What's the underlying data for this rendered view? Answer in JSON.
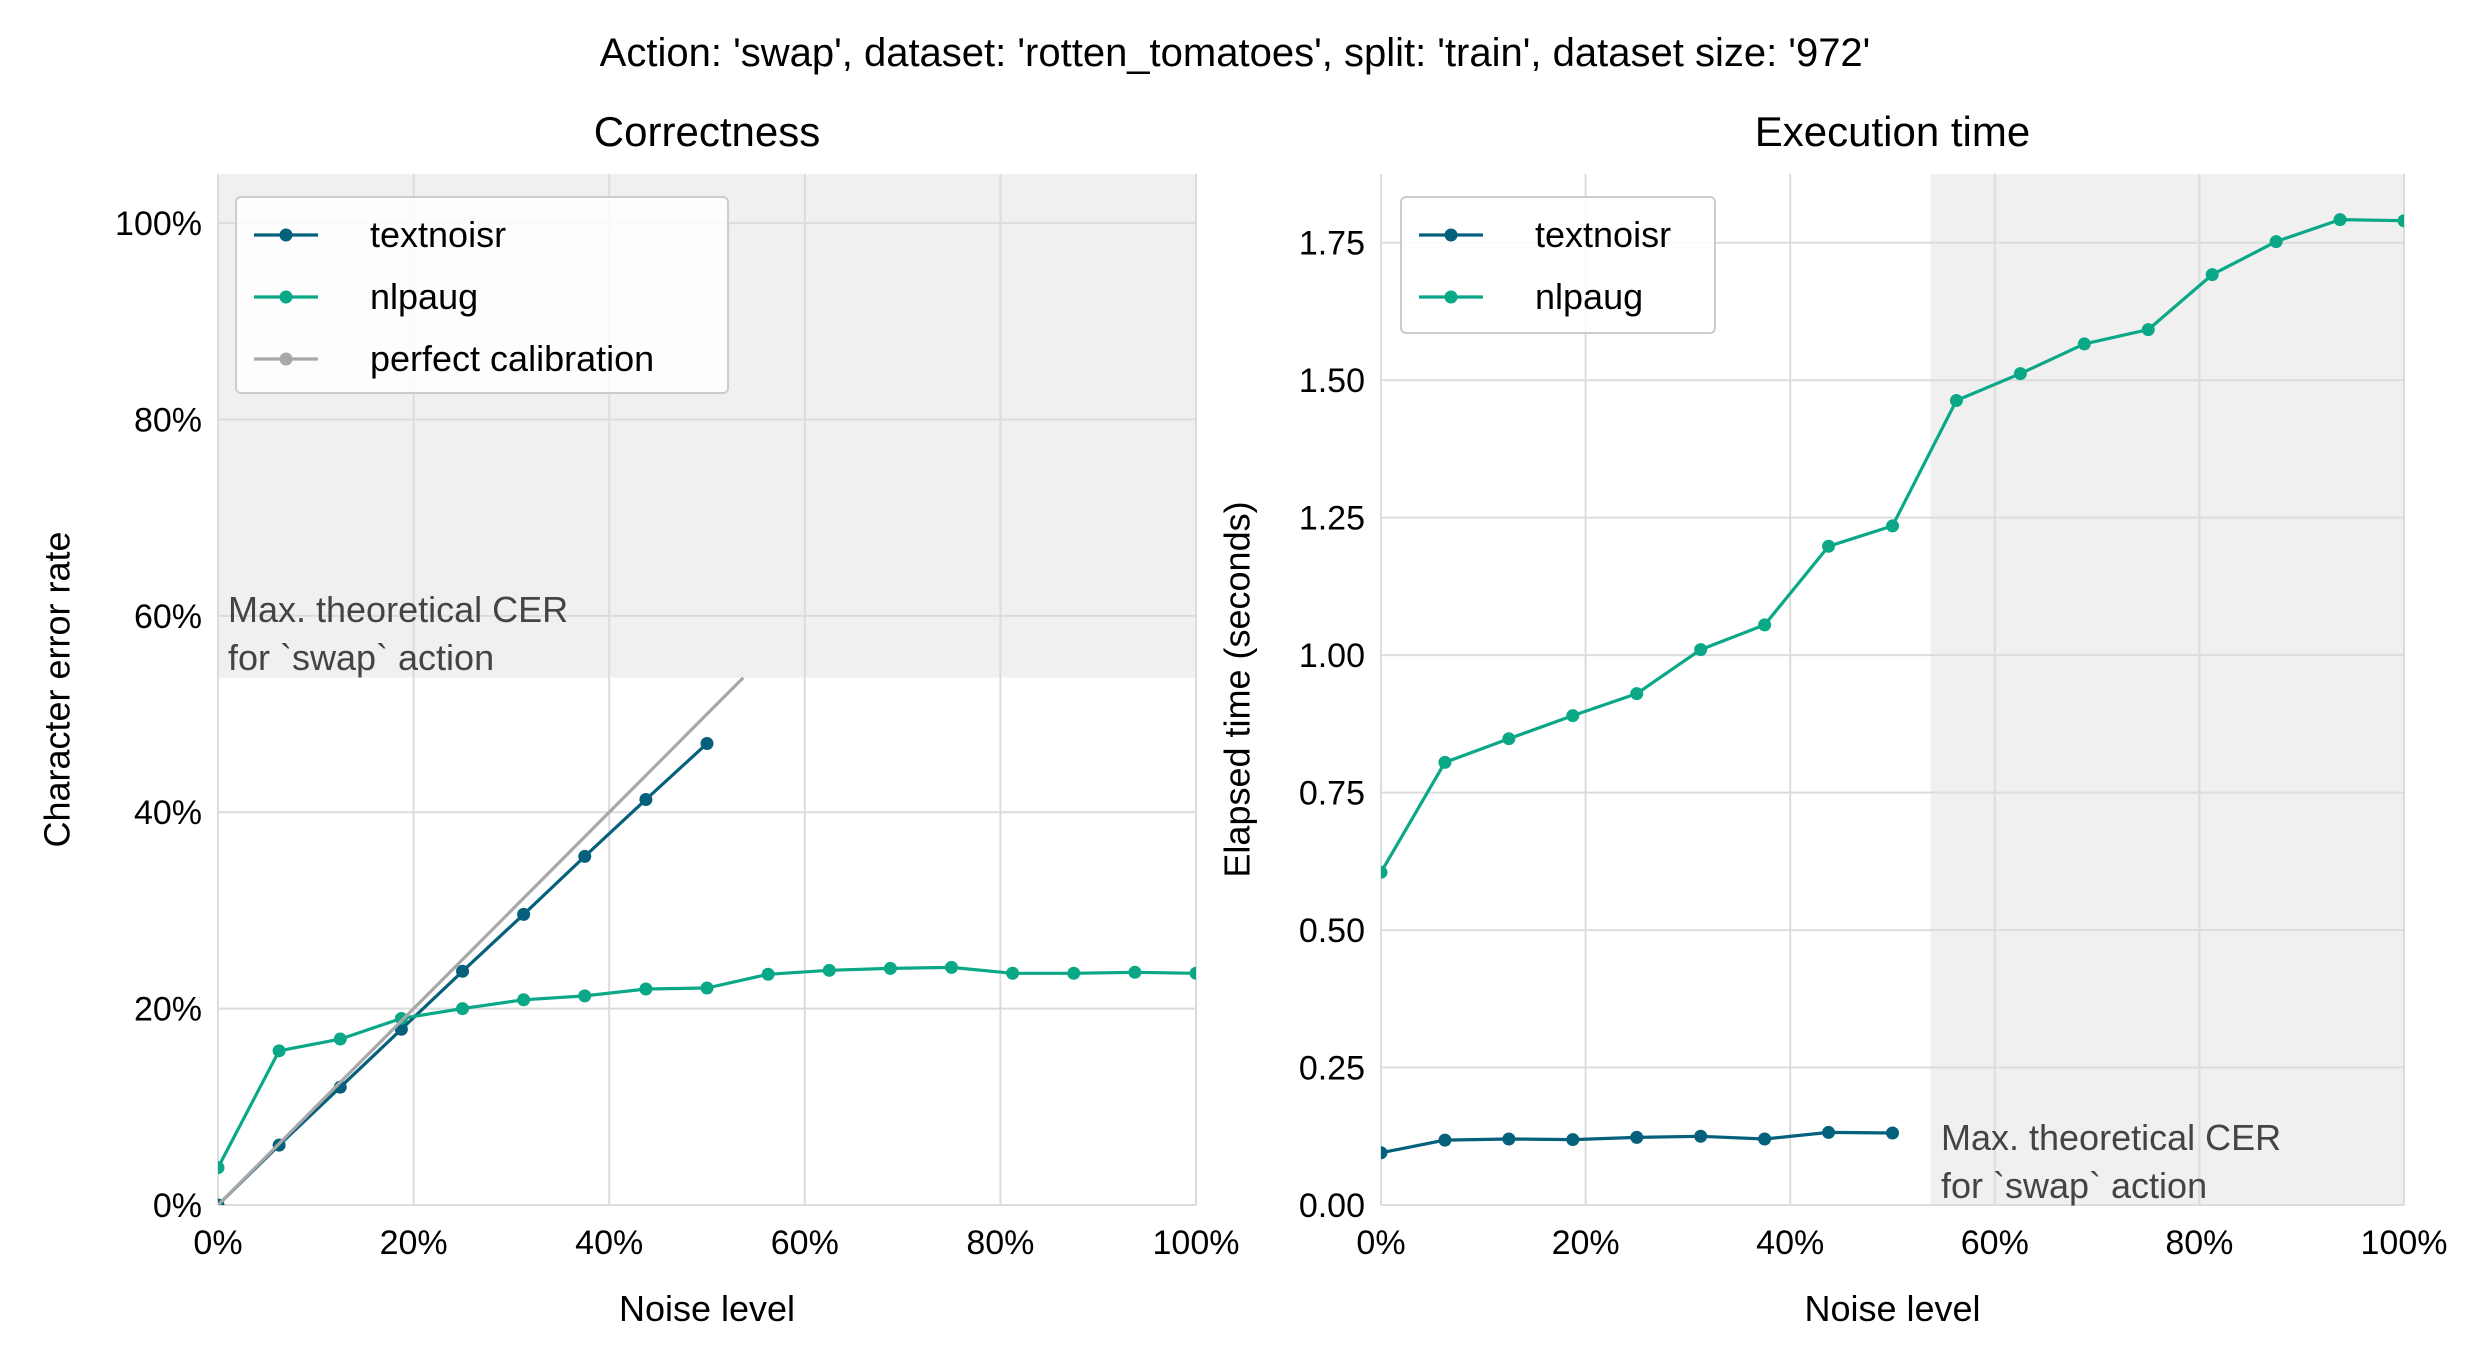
{
  "suptitle": "Action: 'swap', dataset: 'rotten_tomatoes', split: 'train', dataset size: '972'",
  "colors": {
    "textnoisr": "#05607c",
    "nlpaug": "#0aa887",
    "perfect": "#a8a8a8",
    "shade": "#f0f0f0",
    "grid": "#dcdcdc",
    "annotation": "#444444"
  },
  "chart_data": [
    {
      "type": "line",
      "title": "Correctness",
      "xlabel": "Noise level",
      "ylabel": "Character error rate",
      "xlim": [
        0,
        100
      ],
      "ylim": [
        0,
        105
      ],
      "xticks": [
        0,
        20,
        40,
        60,
        80,
        100
      ],
      "xtick_labels": [
        "0%",
        "20%",
        "40%",
        "60%",
        "80%",
        "100%"
      ],
      "yticks": [
        0,
        20,
        40,
        60,
        80,
        100
      ],
      "ytick_labels": [
        "0%",
        "20%",
        "40%",
        "60%",
        "80%",
        "100%"
      ],
      "grid": true,
      "legend": "top-left",
      "shade": {
        "axis": "y",
        "from": 53.7,
        "to": 105
      },
      "annotation": {
        "lines": [
          "Max. theoretical CER",
          "for `swap` action"
        ]
      },
      "series": [
        {
          "name": "textnoisr",
          "color_key": "textnoisr",
          "markers": true,
          "x": [
            0,
            6.25,
            12.5,
            18.75,
            25,
            31.25,
            37.5,
            43.75,
            50
          ],
          "y": [
            0,
            6.1,
            12.0,
            17.9,
            23.8,
            29.6,
            35.5,
            41.3,
            47.0
          ]
        },
        {
          "name": "nlpaug",
          "color_key": "nlpaug",
          "markers": true,
          "x": [
            0,
            6.25,
            12.5,
            18.75,
            25,
            31.25,
            37.5,
            43.75,
            50,
            56.25,
            62.5,
            68.75,
            75,
            81.25,
            87.5,
            93.75,
            100
          ],
          "y": [
            3.8,
            15.7,
            16.9,
            19.0,
            20.0,
            20.9,
            21.3,
            22.0,
            22.1,
            23.5,
            23.9,
            24.1,
            24.2,
            23.6,
            23.6,
            23.7,
            23.6
          ]
        },
        {
          "name": "perfect calibration",
          "color_key": "perfect",
          "markers": false,
          "x": [
            0,
            53.7
          ],
          "y": [
            0,
            53.7
          ]
        }
      ]
    },
    {
      "type": "line",
      "title": "Execution time",
      "xlabel": "Noise level",
      "ylabel": "Elapsed time (seconds)",
      "xlim": [
        0,
        100
      ],
      "ylim": [
        0,
        1.875
      ],
      "xticks": [
        0,
        20,
        40,
        60,
        80,
        100
      ],
      "xtick_labels": [
        "0%",
        "20%",
        "40%",
        "60%",
        "80%",
        "100%"
      ],
      "yticks": [
        0,
        0.25,
        0.5,
        0.75,
        1.0,
        1.25,
        1.5,
        1.75
      ],
      "ytick_labels": [
        "0.00",
        "0.25",
        "0.50",
        "0.75",
        "1.00",
        "1.25",
        "1.50",
        "1.75"
      ],
      "grid": true,
      "legend": "top-left",
      "shade": {
        "axis": "x",
        "from": 53.7,
        "to": 100
      },
      "annotation": {
        "lines": [
          "Max. theoretical CER",
          "for `swap` action"
        ]
      },
      "series": [
        {
          "name": "textnoisr",
          "color_key": "textnoisr",
          "markers": true,
          "x": [
            0,
            6.25,
            12.5,
            18.75,
            25,
            31.25,
            37.5,
            43.75,
            50
          ],
          "y": [
            0.095,
            0.118,
            0.12,
            0.119,
            0.123,
            0.125,
            0.12,
            0.132,
            0.131
          ]
        },
        {
          "name": "nlpaug",
          "color_key": "nlpaug",
          "markers": true,
          "x": [
            0,
            6.25,
            12.5,
            18.75,
            25,
            31.25,
            37.5,
            43.75,
            50,
            56.25,
            62.5,
            68.75,
            75,
            81.25,
            87.5,
            93.75,
            100
          ],
          "y": [
            0.605,
            0.805,
            0.848,
            0.89,
            0.93,
            1.01,
            1.055,
            1.198,
            1.235,
            1.463,
            1.512,
            1.566,
            1.592,
            1.692,
            1.752,
            1.792,
            1.79
          ]
        }
      ]
    }
  ]
}
